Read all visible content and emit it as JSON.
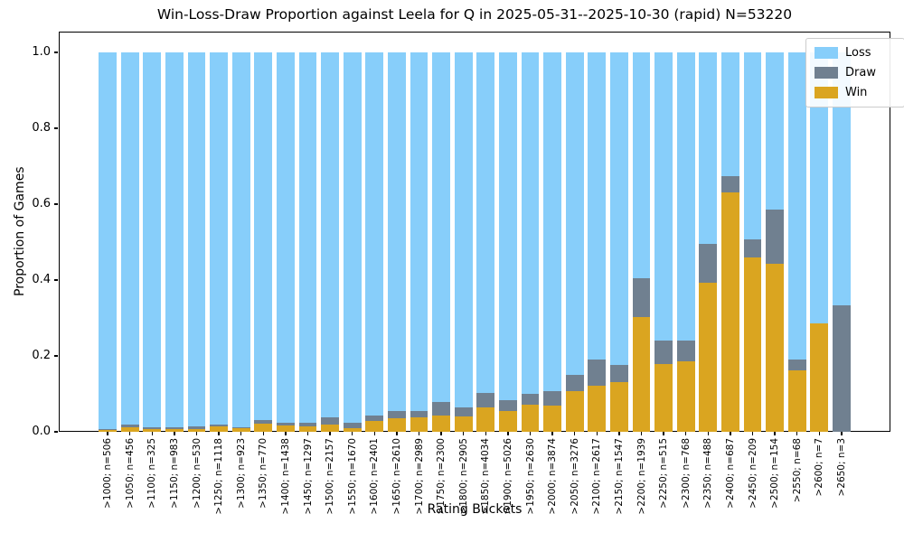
{
  "title": "Win-Loss-Draw Proportion against Leela for Q in 2025-05-31--2025-10-30 (rapid) N=53220",
  "legend": [
    {
      "label": "Loss",
      "color": "#87CEFA"
    },
    {
      "label": "Draw",
      "color": "#708090"
    },
    {
      "label": "Win",
      "color": "#DAA520"
    }
  ],
  "chart_data": {
    "type": "bar",
    "stacked": true,
    "title": "Win-Loss-Draw Proportion against Leela for Q in 2025-05-31--2025-10-30 (rapid) N=53220",
    "xlabel": "Rating Buckets",
    "ylabel": "Proportion of Games",
    "ylim": [
      0,
      1.055
    ],
    "grid": false,
    "legend_position": "upper right",
    "yticks": [
      0,
      0.2,
      0.4,
      0.6,
      0.8,
      1.0
    ],
    "ytick_labels": [
      "0.0",
      "0.2",
      "0.4",
      "0.6",
      "0.8",
      "1.0"
    ],
    "categories": [
      ">1000; n=506",
      ">1050; n=456",
      ">1100; n=325",
      ">1150; n=983",
      ">1200; n=530",
      ">1250; n=1118",
      ">1300; n=923",
      ">1350; n=770",
      ">1400; n=1438",
      ">1450; n=1297",
      ">1500; n=2157",
      ">1550; n=1670",
      ">1600; n=2401",
      ">1650; n=2610",
      ">1700; n=2989",
      ">1750; n=2300",
      ">1800; n=2905",
      ">1850; n=4034",
      ">1900; n=5026",
      ">1950; n=2630",
      ">2000; n=3874",
      ">2050; n=3276",
      ">2100; n=2617",
      ">2150; n=1547",
      ">2200; n=1939",
      ">2250; n=515",
      ">2300; n=768",
      ">2350; n=488",
      ">2400; n=687",
      ">2450; n=209",
      ">2500; n=154",
      ">2550; n=68",
      ">2600; n=7",
      ">2650; n=3"
    ],
    "series": [
      {
        "name": "Win",
        "color": "#DAA520",
        "values": [
          0.005,
          0.011,
          0.006,
          0.006,
          0.008,
          0.014,
          0.01,
          0.021,
          0.017,
          0.015,
          0.019,
          0.01,
          0.029,
          0.036,
          0.038,
          0.043,
          0.041,
          0.064,
          0.055,
          0.071,
          0.07,
          0.106,
          0.122,
          0.132,
          0.302,
          0.179,
          0.185,
          0.394,
          0.63,
          0.459,
          0.442,
          0.162,
          0.286,
          0.0
        ]
      },
      {
        "name": "Draw",
        "color": "#708090",
        "values": [
          0.003,
          0.008,
          0.006,
          0.005,
          0.006,
          0.005,
          0.003,
          0.009,
          0.008,
          0.008,
          0.019,
          0.015,
          0.014,
          0.019,
          0.017,
          0.035,
          0.024,
          0.039,
          0.028,
          0.03,
          0.038,
          0.044,
          0.068,
          0.044,
          0.103,
          0.062,
          0.056,
          0.101,
          0.044,
          0.048,
          0.143,
          0.029,
          0.0,
          0.333
        ]
      },
      {
        "name": "Loss",
        "color": "#87CEFA",
        "values": [
          0.992,
          0.981,
          0.988,
          0.989,
          0.986,
          0.981,
          0.987,
          0.97,
          0.975,
          0.977,
          0.962,
          0.975,
          0.957,
          0.945,
          0.945,
          0.922,
          0.935,
          0.897,
          0.917,
          0.899,
          0.892,
          0.85,
          0.81,
          0.824,
          0.595,
          0.759,
          0.759,
          0.505,
          0.326,
          0.493,
          0.415,
          0.809,
          0.714,
          0.667
        ]
      }
    ]
  }
}
